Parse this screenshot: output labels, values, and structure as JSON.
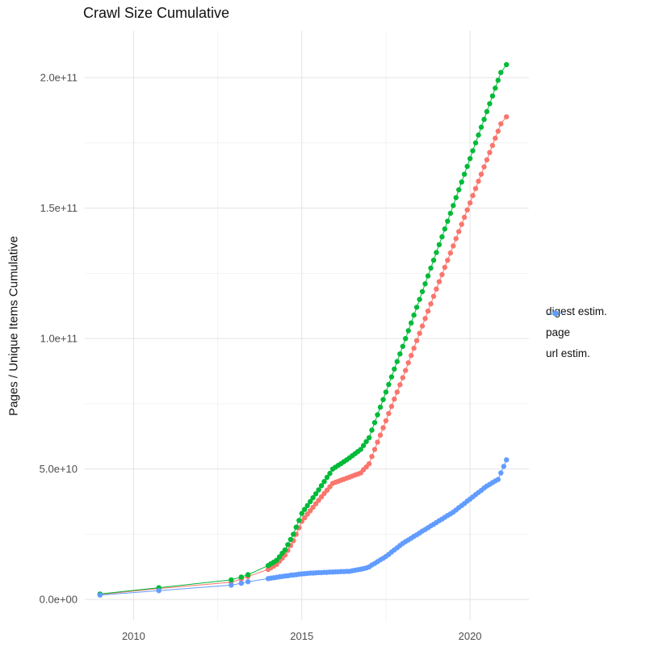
{
  "chart_data": {
    "type": "scatter",
    "title": "Crawl Size Cumulative",
    "xlabel": "",
    "ylabel": "Pages / Unique Items Cumulative",
    "legend_position": "right",
    "grid": true,
    "xlim": [
      2008.55,
      2021.75
    ],
    "ylim_e9": [
      -8,
      218
    ],
    "unit": 1000000000,
    "x_ticks": [
      {
        "value": 2010,
        "label": "2010"
      },
      {
        "value": 2015,
        "label": "2015"
      },
      {
        "value": 2020,
        "label": "2020"
      }
    ],
    "x_minor_ticks": [
      2012.5,
      2017.5
    ],
    "y_ticks": [
      {
        "value_e9": 0,
        "label": "0.0e+00"
      },
      {
        "value_e9": 50,
        "label": "5.0e+10"
      },
      {
        "value_e9": 100,
        "label": "1.0e+11"
      },
      {
        "value_e9": 150,
        "label": "1.5e+11"
      },
      {
        "value_e9": 200,
        "label": "2.0e+11"
      }
    ],
    "y_minor_ticks_e9": [
      25,
      75,
      125,
      175
    ],
    "colors": {
      "digest": "#F8766D",
      "page": "#00BA38",
      "url": "#619CFF",
      "grid_major": "#e3e3e3",
      "grid_minor": "#f2f2f2"
    },
    "series": [
      {
        "name": "digest estim.",
        "color": "#F8766D",
        "points_e9": [
          [
            2009.0,
            1.9
          ],
          [
            2010.75,
            4.2
          ],
          [
            2012.9,
            6.6
          ],
          [
            2013.2,
            7.8
          ],
          [
            2013.4,
            8.8
          ],
          [
            2014.0,
            11.5
          ],
          [
            2014.083,
            12.2
          ],
          [
            2014.167,
            12.8
          ],
          [
            2014.25,
            13.5
          ],
          [
            2014.333,
            14.7
          ],
          [
            2014.417,
            15.8
          ],
          [
            2014.5,
            17.0
          ],
          [
            2014.583,
            18.8
          ],
          [
            2014.667,
            20.7
          ],
          [
            2014.75,
            22.5
          ],
          [
            2014.833,
            25.0
          ],
          [
            2014.917,
            27.5
          ],
          [
            2015.0,
            30.0
          ],
          [
            2015.083,
            31.3
          ],
          [
            2015.167,
            32.7
          ],
          [
            2015.25,
            34.0
          ],
          [
            2015.333,
            35.3
          ],
          [
            2015.417,
            36.7
          ],
          [
            2015.5,
            38.0
          ],
          [
            2015.583,
            39.3
          ],
          [
            2015.667,
            40.6
          ],
          [
            2015.75,
            41.9
          ],
          [
            2015.833,
            43.2
          ],
          [
            2015.917,
            44.5
          ],
          [
            2016.0,
            44.9
          ],
          [
            2016.083,
            45.3
          ],
          [
            2016.167,
            45.7
          ],
          [
            2016.25,
            46.1
          ],
          [
            2016.333,
            46.5
          ],
          [
            2016.417,
            46.9
          ],
          [
            2016.5,
            47.3
          ],
          [
            2016.583,
            47.7
          ],
          [
            2016.667,
            48.1
          ],
          [
            2016.75,
            48.5
          ],
          [
            2016.833,
            49.7
          ],
          [
            2016.917,
            50.8
          ],
          [
            2017.0,
            52.0
          ],
          [
            2017.083,
            54.8
          ],
          [
            2017.167,
            57.5
          ],
          [
            2017.25,
            60.3
          ],
          [
            2017.333,
            63.0
          ],
          [
            2017.417,
            65.8
          ],
          [
            2017.5,
            68.5
          ],
          [
            2017.583,
            71.3
          ],
          [
            2017.667,
            74.0
          ],
          [
            2017.75,
            76.8
          ],
          [
            2017.833,
            79.5
          ],
          [
            2017.917,
            82.3
          ],
          [
            2018.0,
            85.0
          ],
          [
            2018.083,
            87.8
          ],
          [
            2018.167,
            90.7
          ],
          [
            2018.25,
            93.5
          ],
          [
            2018.333,
            96.3
          ],
          [
            2018.417,
            99.2
          ],
          [
            2018.5,
            102.0
          ],
          [
            2018.583,
            104.8
          ],
          [
            2018.667,
            107.7
          ],
          [
            2018.75,
            110.5
          ],
          [
            2018.833,
            113.3
          ],
          [
            2018.917,
            116.2
          ],
          [
            2019.0,
            119.0
          ],
          [
            2019.083,
            121.8
          ],
          [
            2019.167,
            124.5
          ],
          [
            2019.25,
            127.3
          ],
          [
            2019.333,
            130.0
          ],
          [
            2019.417,
            132.8
          ],
          [
            2019.5,
            135.5
          ],
          [
            2019.583,
            138.3
          ],
          [
            2019.667,
            141.0
          ],
          [
            2019.75,
            143.8
          ],
          [
            2019.833,
            146.5
          ],
          [
            2019.917,
            149.3
          ],
          [
            2020.0,
            152.0
          ],
          [
            2020.083,
            154.8
          ],
          [
            2020.167,
            157.5
          ],
          [
            2020.25,
            160.3
          ],
          [
            2020.333,
            163.0
          ],
          [
            2020.417,
            165.8
          ],
          [
            2020.5,
            168.5
          ],
          [
            2020.583,
            171.3
          ],
          [
            2020.667,
            174.0
          ],
          [
            2020.75,
            176.8
          ],
          [
            2020.833,
            179.5
          ],
          [
            2020.917,
            182.3
          ],
          [
            2021.083,
            185.0
          ]
        ]
      },
      {
        "name": "page",
        "color": "#00BA38",
        "points_e9": [
          [
            2009.0,
            2.1
          ],
          [
            2010.75,
            4.5
          ],
          [
            2012.9,
            7.5
          ],
          [
            2013.2,
            8.6
          ],
          [
            2013.4,
            9.5
          ],
          [
            2014.0,
            13.0
          ],
          [
            2014.083,
            13.7
          ],
          [
            2014.167,
            14.3
          ],
          [
            2014.25,
            15.0
          ],
          [
            2014.333,
            16.3
          ],
          [
            2014.417,
            17.7
          ],
          [
            2014.5,
            19.0
          ],
          [
            2014.583,
            21.0
          ],
          [
            2014.667,
            23.0
          ],
          [
            2014.75,
            25.0
          ],
          [
            2014.833,
            27.7
          ],
          [
            2014.917,
            30.3
          ],
          [
            2015.0,
            33.0
          ],
          [
            2015.083,
            34.5
          ],
          [
            2015.167,
            36.0
          ],
          [
            2015.25,
            37.5
          ],
          [
            2015.333,
            39.0
          ],
          [
            2015.417,
            40.5
          ],
          [
            2015.5,
            42.0
          ],
          [
            2015.583,
            43.6
          ],
          [
            2015.667,
            45.2
          ],
          [
            2015.75,
            46.8
          ],
          [
            2015.833,
            48.3
          ],
          [
            2015.917,
            50.0
          ],
          [
            2016.0,
            50.7
          ],
          [
            2016.083,
            51.4
          ],
          [
            2016.167,
            52.1
          ],
          [
            2016.25,
            52.8
          ],
          [
            2016.333,
            53.5
          ],
          [
            2016.417,
            54.3
          ],
          [
            2016.5,
            55.1
          ],
          [
            2016.583,
            55.9
          ],
          [
            2016.667,
            56.7
          ],
          [
            2016.75,
            57.5
          ],
          [
            2016.833,
            59.0
          ],
          [
            2016.917,
            60.5
          ],
          [
            2017.0,
            62.0
          ],
          [
            2017.083,
            64.9
          ],
          [
            2017.167,
            67.8
          ],
          [
            2017.25,
            70.8
          ],
          [
            2017.333,
            73.7
          ],
          [
            2017.417,
            76.6
          ],
          [
            2017.5,
            79.5
          ],
          [
            2017.583,
            82.4
          ],
          [
            2017.667,
            85.3
          ],
          [
            2017.75,
            88.3
          ],
          [
            2017.833,
            91.2
          ],
          [
            2017.917,
            94.1
          ],
          [
            2018.0,
            97.0
          ],
          [
            2018.083,
            100.0
          ],
          [
            2018.167,
            103.0
          ],
          [
            2018.25,
            106.0
          ],
          [
            2018.333,
            109.0
          ],
          [
            2018.417,
            112.0
          ],
          [
            2018.5,
            115.0
          ],
          [
            2018.583,
            118.0
          ],
          [
            2018.667,
            121.0
          ],
          [
            2018.75,
            124.0
          ],
          [
            2018.833,
            127.0
          ],
          [
            2018.917,
            130.0
          ],
          [
            2019.0,
            133.0
          ],
          [
            2019.083,
            136.0
          ],
          [
            2019.167,
            139.0
          ],
          [
            2019.25,
            142.0
          ],
          [
            2019.333,
            145.0
          ],
          [
            2019.417,
            148.0
          ],
          [
            2019.5,
            151.0
          ],
          [
            2019.583,
            154.0
          ],
          [
            2019.667,
            157.0
          ],
          [
            2019.75,
            160.0
          ],
          [
            2019.833,
            163.0
          ],
          [
            2019.917,
            166.0
          ],
          [
            2020.0,
            169.0
          ],
          [
            2020.083,
            172.0
          ],
          [
            2020.167,
            175.0
          ],
          [
            2020.25,
            178.0
          ],
          [
            2020.333,
            181.0
          ],
          [
            2020.417,
            184.0
          ],
          [
            2020.5,
            187.0
          ],
          [
            2020.583,
            190.0
          ],
          [
            2020.667,
            193.0
          ],
          [
            2020.75,
            196.0
          ],
          [
            2020.833,
            199.0
          ],
          [
            2020.917,
            202.0
          ],
          [
            2021.083,
            205.0
          ]
        ]
      },
      {
        "name": "url estim.",
        "color": "#619CFF",
        "points_e9": [
          [
            2009.0,
            1.7
          ],
          [
            2010.75,
            3.4
          ],
          [
            2012.9,
            5.5
          ],
          [
            2013.2,
            6.2
          ],
          [
            2013.4,
            6.8
          ],
          [
            2014.0,
            8.0
          ],
          [
            2014.083,
            8.2
          ],
          [
            2014.167,
            8.3
          ],
          [
            2014.25,
            8.5
          ],
          [
            2014.333,
            8.7
          ],
          [
            2014.417,
            8.8
          ],
          [
            2014.5,
            9.0
          ],
          [
            2014.583,
            9.1
          ],
          [
            2014.667,
            9.3
          ],
          [
            2014.75,
            9.4
          ],
          [
            2014.833,
            9.5
          ],
          [
            2014.917,
            9.7
          ],
          [
            2015.0,
            9.8
          ],
          [
            2015.083,
            9.9
          ],
          [
            2015.167,
            10.0
          ],
          [
            2015.25,
            10.1
          ],
          [
            2015.333,
            10.1
          ],
          [
            2015.417,
            10.2
          ],
          [
            2015.5,
            10.3
          ],
          [
            2015.583,
            10.3
          ],
          [
            2015.667,
            10.4
          ],
          [
            2015.75,
            10.4
          ],
          [
            2015.833,
            10.5
          ],
          [
            2015.917,
            10.5
          ],
          [
            2016.0,
            10.6
          ],
          [
            2016.083,
            10.6
          ],
          [
            2016.167,
            10.7
          ],
          [
            2016.25,
            10.7
          ],
          [
            2016.333,
            10.8
          ],
          [
            2016.417,
            10.8
          ],
          [
            2016.5,
            11.0
          ],
          [
            2016.583,
            11.2
          ],
          [
            2016.667,
            11.4
          ],
          [
            2016.75,
            11.6
          ],
          [
            2016.833,
            11.8
          ],
          [
            2016.917,
            12.1
          ],
          [
            2017.0,
            12.5
          ],
          [
            2017.083,
            13.2
          ],
          [
            2017.167,
            13.8
          ],
          [
            2017.25,
            14.5
          ],
          [
            2017.333,
            15.2
          ],
          [
            2017.417,
            15.8
          ],
          [
            2017.5,
            16.5
          ],
          [
            2017.583,
            17.3
          ],
          [
            2017.667,
            18.2
          ],
          [
            2017.75,
            19.0
          ],
          [
            2017.833,
            19.8
          ],
          [
            2017.917,
            20.7
          ],
          [
            2018.0,
            21.5
          ],
          [
            2018.083,
            22.2
          ],
          [
            2018.167,
            22.8
          ],
          [
            2018.25,
            23.5
          ],
          [
            2018.333,
            24.2
          ],
          [
            2018.417,
            24.8
          ],
          [
            2018.5,
            25.5
          ],
          [
            2018.583,
            26.2
          ],
          [
            2018.667,
            26.8
          ],
          [
            2018.75,
            27.5
          ],
          [
            2018.833,
            28.2
          ],
          [
            2018.917,
            28.8
          ],
          [
            2019.0,
            29.5
          ],
          [
            2019.083,
            30.2
          ],
          [
            2019.167,
            30.8
          ],
          [
            2019.25,
            31.5
          ],
          [
            2019.333,
            32.2
          ],
          [
            2019.417,
            32.8
          ],
          [
            2019.5,
            33.5
          ],
          [
            2019.583,
            34.3
          ],
          [
            2019.667,
            35.2
          ],
          [
            2019.75,
            36.0
          ],
          [
            2019.833,
            36.8
          ],
          [
            2019.917,
            37.7
          ],
          [
            2020.0,
            38.5
          ],
          [
            2020.083,
            39.3
          ],
          [
            2020.167,
            40.2
          ],
          [
            2020.25,
            41.0
          ],
          [
            2020.333,
            41.8
          ],
          [
            2020.417,
            42.7
          ],
          [
            2020.5,
            43.5
          ],
          [
            2020.583,
            44.1
          ],
          [
            2020.667,
            44.8
          ],
          [
            2020.75,
            45.4
          ],
          [
            2020.833,
            46.0
          ],
          [
            2020.917,
            48.5
          ],
          [
            2021.0,
            51.0
          ],
          [
            2021.083,
            53.5
          ]
        ]
      }
    ]
  }
}
